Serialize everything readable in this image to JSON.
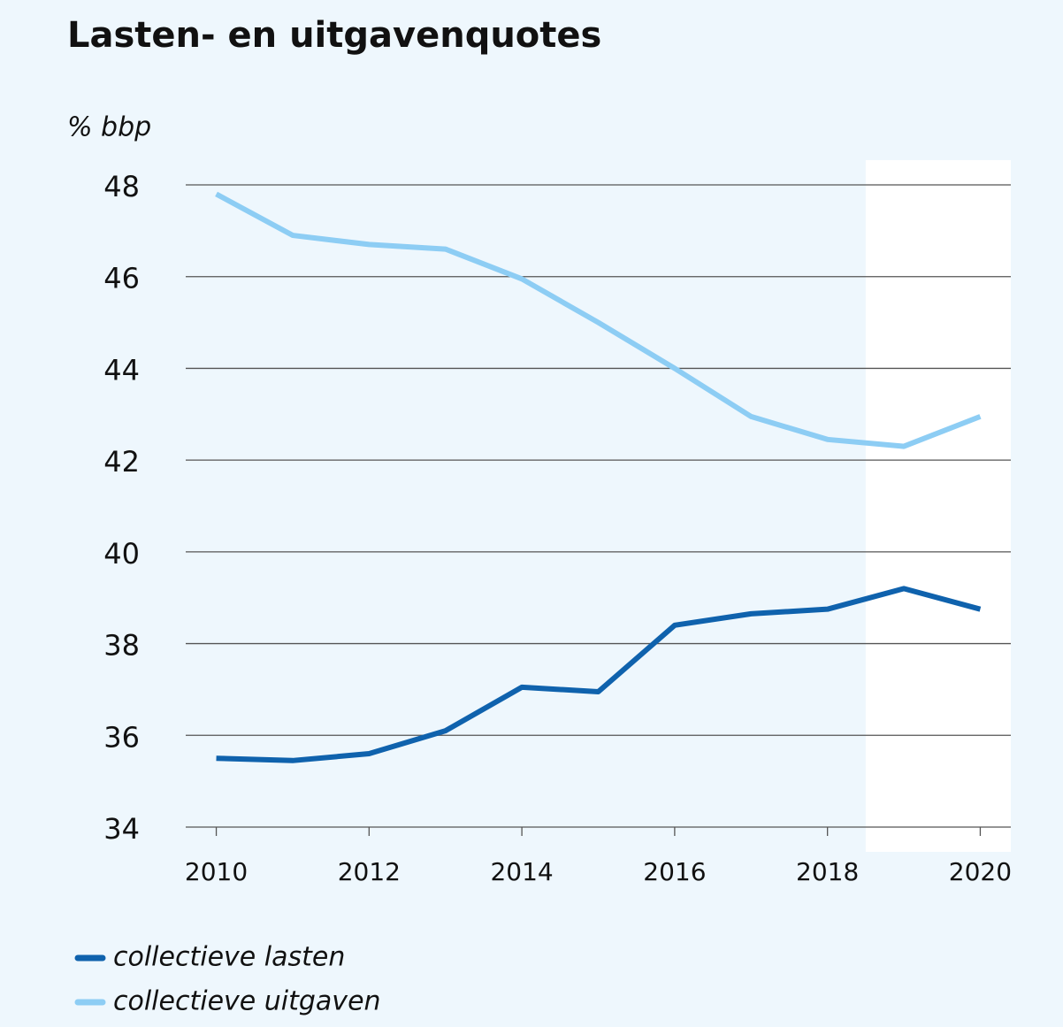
{
  "chart_data": {
    "type": "line",
    "title": "Lasten- en uitgavenquotes",
    "y_label": "% bbp",
    "x": [
      2010,
      2011,
      2012,
      2013,
      2014,
      2015,
      2016,
      2017,
      2018,
      2019,
      2020
    ],
    "series": [
      {
        "name": "collectieve lasten",
        "color": "#0f62ad",
        "values": [
          35.5,
          35.45,
          35.6,
          36.1,
          37.05,
          36.95,
          38.4,
          38.65,
          38.75,
          39.2,
          38.75
        ]
      },
      {
        "name": "collectieve uitgaven",
        "color": "#8dcdf4",
        "values": [
          47.8,
          46.9,
          46.7,
          46.6,
          45.95,
          45.0,
          44.0,
          42.95,
          42.45,
          42.3,
          42.95
        ]
      }
    ],
    "xlim": [
      2009.6,
      2020.4
    ],
    "xticks": [
      2010,
      2012,
      2014,
      2016,
      2018,
      2020
    ],
    "ylim": [
      34,
      48
    ],
    "yticks": [
      34,
      36,
      38,
      40,
      42,
      44,
      46,
      48
    ],
    "grid": true,
    "shaded_xrange": [
      2018.5,
      2020.4
    ],
    "legend": "bottom-left"
  }
}
